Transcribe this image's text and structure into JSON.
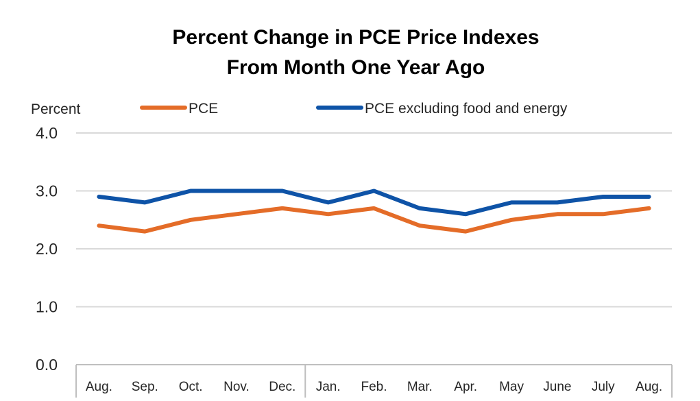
{
  "chart_data": {
    "type": "line",
    "title_lines": [
      "Percent Change in PCE Price Indexes",
      "From Month One Year Ago"
    ],
    "ylabel": "Percent",
    "xlabel": "",
    "categories": [
      "Aug.",
      "Sep.",
      "Oct.",
      "Nov.",
      "Dec.",
      "Jan.",
      "Feb.",
      "Mar.",
      "Apr.",
      "May",
      "June",
      "July",
      "Aug."
    ],
    "ylim": [
      0,
      4
    ],
    "yticks": [
      "0.0",
      "1.0",
      "2.0",
      "3.0",
      "4.0"
    ],
    "grid": true,
    "year_break_after_index": 4,
    "legend_position": "top",
    "series": [
      {
        "name": "PCE",
        "color": "#E46C28",
        "values": [
          2.4,
          2.3,
          2.5,
          2.6,
          2.7,
          2.6,
          2.7,
          2.4,
          2.3,
          2.5,
          2.6,
          2.6,
          2.7
        ]
      },
      {
        "name": "PCE excluding food and energy",
        "color": "#0E53A7",
        "values": [
          2.9,
          2.8,
          3.0,
          3.0,
          3.0,
          2.8,
          3.0,
          2.7,
          2.6,
          2.8,
          2.8,
          2.9,
          2.9
        ]
      }
    ],
    "gridline_color": "#D9D9D9",
    "axis_color": "#BFBFBF"
  }
}
